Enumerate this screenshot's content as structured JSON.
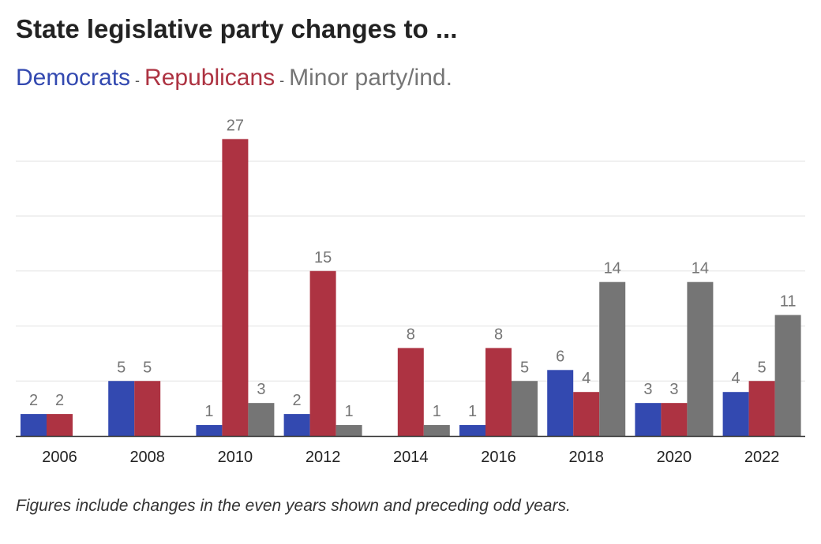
{
  "title": "State legislative party changes to ...",
  "legend": {
    "democrats": "Democrats",
    "republicans": "Republicans",
    "minor": "Minor party/ind.",
    "separator": "-"
  },
  "footnote": "Figures include changes in the even years shown and preceding odd years.",
  "colors": {
    "democrats": "#3349b0",
    "republicans": "#ad3342",
    "minor": "#757575",
    "grid": "#e2e2e2",
    "axis": "#333333",
    "label": "#757575"
  },
  "chart_data": {
    "type": "bar",
    "categories": [
      "2006",
      "2008",
      "2010",
      "2012",
      "2014",
      "2016",
      "2018",
      "2020",
      "2022"
    ],
    "series": [
      {
        "name": "Democrats",
        "values": [
          2,
          5,
          1,
          2,
          0,
          1,
          6,
          3,
          4
        ]
      },
      {
        "name": "Republicans",
        "values": [
          2,
          5,
          27,
          15,
          8,
          8,
          4,
          3,
          5
        ]
      },
      {
        "name": "Minor party/ind.",
        "values": [
          0,
          0,
          3,
          1,
          1,
          5,
          14,
          14,
          11
        ]
      }
    ],
    "ylim": [
      0,
      30
    ],
    "grid": true,
    "xlabel": "",
    "ylabel": ""
  }
}
